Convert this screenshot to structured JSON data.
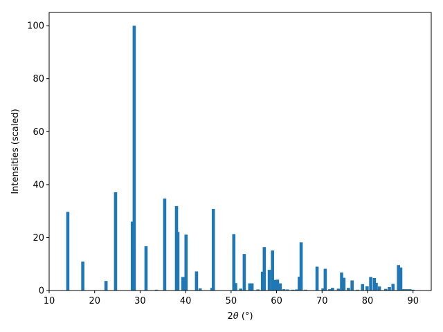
{
  "chart_data": {
    "type": "bar",
    "title": "",
    "xlabel_prefix": "2",
    "xlabel_symbol": "θ",
    "xlabel_suffix": " (°)",
    "ylabel": "Intensities (scaled)",
    "xlim": [
      10,
      94
    ],
    "ylim": [
      0,
      105
    ],
    "xticks": [
      10,
      20,
      30,
      40,
      50,
      60,
      70,
      80,
      90
    ],
    "yticks": [
      0,
      20,
      40,
      60,
      80,
      100
    ],
    "bar_width": 0.7,
    "grid": false,
    "bar_color": "#1f77b4",
    "series": [
      {
        "x": [
          14.1,
          17.4,
          22.5,
          24.6,
          28.3,
          28.7,
          31.3,
          33.6,
          35.4,
          38.0,
          38.3,
          39.4,
          40.1,
          42.4,
          43.2,
          45.8,
          46.1,
          50.6,
          51.0,
          52.1,
          52.9,
          54.1,
          54.6,
          55.9,
          56.9,
          57.3,
          58.4,
          59.1,
          59.6,
          60.2,
          60.8,
          61.6,
          62.4,
          63.6,
          64.4,
          65.0,
          65.4,
          66.4,
          68.9,
          70.2,
          70.7,
          71.7,
          72.3,
          73.6,
          74.3,
          74.8,
          75.8,
          76.6,
          77.8,
          78.9,
          79.9,
          80.7,
          81.5,
          81.9,
          82.6,
          84.0,
          84.8,
          85.6,
          86.8,
          87.3,
          87.9,
          88.6,
          89.3,
          90.0
        ],
        "values": [
          29.7,
          10.9,
          3.6,
          37.1,
          26.0,
          100.0,
          16.7,
          0.3,
          34.7,
          31.9,
          22.1,
          5.1,
          21.1,
          7.2,
          0.8,
          1.0,
          30.8,
          21.3,
          2.8,
          0.7,
          13.8,
          2.7,
          2.7,
          0.4,
          7.1,
          16.4,
          7.8,
          15.1,
          4.0,
          4.1,
          2.7,
          0.5,
          0.4,
          0.3,
          0.4,
          5.2,
          18.2,
          0.3,
          9.0,
          0.8,
          8.2,
          0.5,
          1.0,
          0.7,
          6.8,
          4.8,
          1.0,
          3.8,
          0.3,
          2.4,
          1.6,
          5.1,
          4.7,
          2.9,
          1.5,
          0.6,
          1.3,
          2.5,
          9.6,
          8.7,
          0.5,
          0.5,
          0.5,
          0.3
        ]
      }
    ]
  }
}
